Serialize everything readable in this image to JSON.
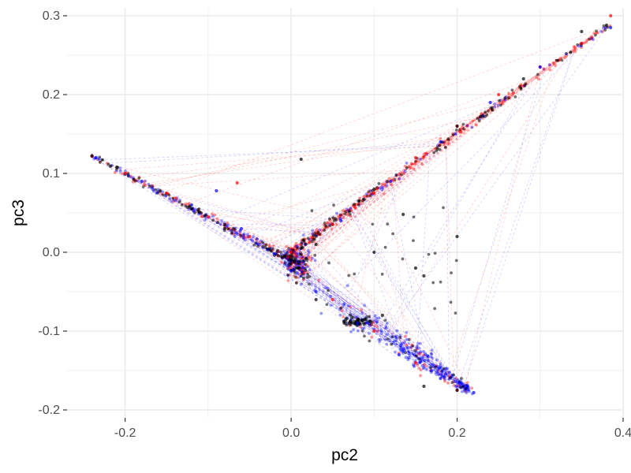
{
  "chart_data": {
    "type": "scatter",
    "title": "",
    "xlabel": "pc2",
    "ylabel": "pc3",
    "xlim": [
      -0.27,
      0.4
    ],
    "ylim": [
      -0.21,
      0.31
    ],
    "x_ticks": [
      -0.2,
      0.0,
      0.2,
      0.4
    ],
    "x_tick_labels": [
      "-0.2",
      "0.0",
      "0.2",
      "0.4"
    ],
    "y_ticks": [
      -0.2,
      -0.1,
      0.0,
      0.1,
      0.2,
      0.3
    ],
    "y_tick_labels": [
      "-0.2",
      "-0.1",
      "0.0",
      "0.1",
      "0.2",
      "0.3"
    ],
    "grid": true,
    "legend": "none",
    "colors": {
      "red": "#ff0000",
      "blue": "#0000ff",
      "black": "#000000",
      "grid": "#ebebeb"
    },
    "shape": {
      "arm_upper_right": {
        "from": [
          0.0,
          0.0
        ],
        "to": [
          0.385,
          0.29
        ]
      },
      "arm_left": {
        "from": [
          0.0,
          -0.01
        ],
        "to": [
          -0.24,
          0.122
        ]
      },
      "arm_lower_right": {
        "from": [
          0.02,
          -0.04
        ],
        "to": [
          0.215,
          -0.175
        ]
      },
      "dense_core": [
        0.01,
        -0.015
      ],
      "black_cluster": [
        0.08,
        -0.088
      ]
    },
    "series": [
      {
        "color": "red",
        "points": [
          [
            -0.24,
            0.122
          ],
          [
            -0.2,
            0.1
          ],
          [
            -0.15,
            0.075
          ],
          [
            -0.1,
            0.045
          ],
          [
            -0.05,
            0.02
          ],
          [
            0.0,
            0.0
          ],
          [
            0.05,
            0.035
          ],
          [
            0.1,
            0.075
          ],
          [
            0.15,
            0.12
          ],
          [
            0.2,
            0.16
          ],
          [
            0.25,
            0.2
          ],
          [
            0.3,
            0.235
          ],
          [
            0.35,
            0.265
          ],
          [
            0.385,
            0.3
          ],
          [
            0.05,
            -0.06
          ],
          [
            0.1,
            -0.1
          ],
          [
            0.15,
            -0.14
          ],
          [
            0.2,
            -0.175
          ],
          [
            -0.065,
            0.088
          ]
        ]
      },
      {
        "color": "blue",
        "points": [
          [
            -0.235,
            0.12
          ],
          [
            -0.18,
            0.09
          ],
          [
            -0.12,
            0.06
          ],
          [
            -0.06,
            0.03
          ],
          [
            0.0,
            -0.01
          ],
          [
            0.06,
            0.04
          ],
          [
            0.12,
            0.09
          ],
          [
            0.18,
            0.14
          ],
          [
            0.24,
            0.19
          ],
          [
            0.3,
            0.235
          ],
          [
            0.385,
            0.285
          ],
          [
            0.03,
            -0.05
          ],
          [
            0.08,
            -0.09
          ],
          [
            0.13,
            -0.13
          ],
          [
            0.18,
            -0.16
          ],
          [
            0.22,
            -0.178
          ],
          [
            -0.09,
            0.078
          ]
        ]
      },
      {
        "color": "black",
        "points": [
          [
            -0.24,
            0.122
          ],
          [
            -0.21,
            0.108
          ],
          [
            -0.12,
            0.055
          ],
          [
            -0.08,
            0.03
          ],
          [
            0.0,
            -0.01
          ],
          [
            0.01,
            -0.02
          ],
          [
            0.03,
            0.01
          ],
          [
            0.1,
            0.08
          ],
          [
            0.2,
            0.16
          ],
          [
            0.28,
            0.22
          ],
          [
            0.35,
            0.28
          ],
          [
            0.07,
            -0.09
          ],
          [
            0.09,
            -0.085
          ],
          [
            0.11,
            -0.08
          ],
          [
            0.1,
            0.0
          ],
          [
            0.15,
            -0.02
          ],
          [
            0.2,
            0.02
          ],
          [
            0.16,
            -0.03
          ],
          [
            0.16,
            -0.17
          ],
          [
            0.2,
            -0.175
          ],
          [
            0.03,
            -0.06
          ],
          [
            0.012,
            0.118
          ],
          [
            0.135,
            0.048
          ],
          [
            0.38,
            0.288
          ]
        ]
      }
    ]
  }
}
